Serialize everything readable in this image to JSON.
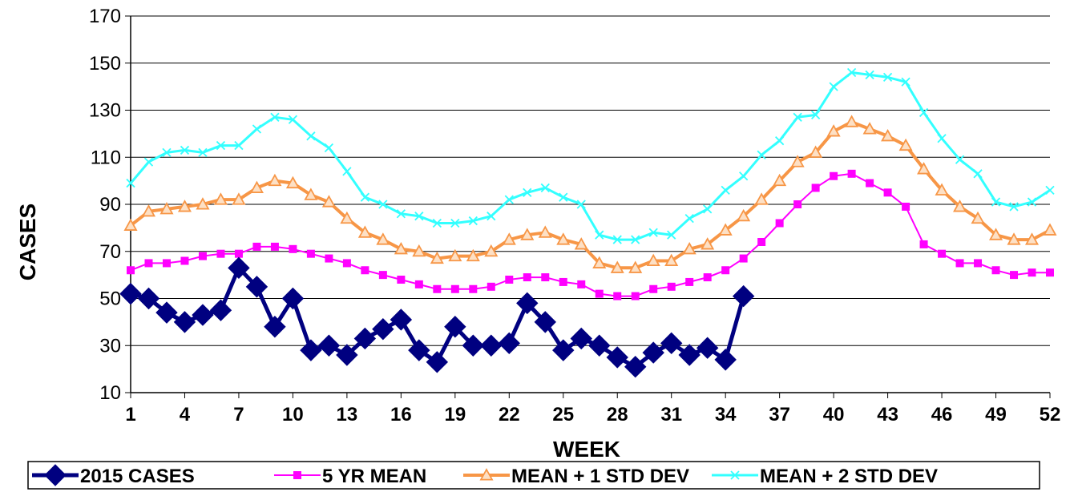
{
  "chart_data": {
    "type": "line",
    "xlabel": "WEEK",
    "ylabel": "CASES",
    "ylim": [
      10,
      170
    ],
    "yticks": [
      10,
      30,
      50,
      70,
      90,
      110,
      130,
      150,
      170
    ],
    "xlim": [
      1,
      52
    ],
    "xticks": [
      1,
      4,
      7,
      10,
      13,
      16,
      19,
      22,
      25,
      28,
      31,
      34,
      37,
      40,
      43,
      46,
      49,
      52
    ],
    "grid": "horizontal",
    "legend_position": "bottom",
    "series": [
      {
        "name": "2015 CASES",
        "color": "#000080",
        "marker": "diamond",
        "x": [
          1,
          2,
          3,
          4,
          5,
          6,
          7,
          8,
          9,
          10,
          11,
          12,
          13,
          14,
          15,
          16,
          17,
          18,
          19,
          20,
          21,
          22,
          23,
          24,
          25,
          26,
          27,
          28,
          29,
          30,
          31,
          32,
          33,
          34,
          35
        ],
        "values": [
          52,
          50,
          44,
          40,
          43,
          45,
          63,
          55,
          38,
          50,
          28,
          30,
          26,
          33,
          37,
          41,
          28,
          23,
          38,
          30,
          30,
          31,
          48,
          40,
          28,
          33,
          30,
          25,
          21,
          27,
          31,
          26,
          29,
          24,
          51
        ]
      },
      {
        "name": "5 YR MEAN",
        "color": "#ff00ff",
        "marker": "square",
        "x": [
          1,
          2,
          3,
          4,
          5,
          6,
          7,
          8,
          9,
          10,
          11,
          12,
          13,
          14,
          15,
          16,
          17,
          18,
          19,
          20,
          21,
          22,
          23,
          24,
          25,
          26,
          27,
          28,
          29,
          30,
          31,
          32,
          33,
          34,
          35,
          36,
          37,
          38,
          39,
          40,
          41,
          42,
          43,
          44,
          45,
          46,
          47,
          48,
          49,
          50,
          51,
          52
        ],
        "values": [
          62,
          65,
          65,
          66,
          68,
          69,
          69,
          72,
          72,
          71,
          69,
          67,
          65,
          62,
          60,
          58,
          56,
          54,
          54,
          54,
          55,
          58,
          59,
          59,
          57,
          56,
          52,
          51,
          51,
          54,
          55,
          57,
          59,
          62,
          67,
          74,
          82,
          90,
          97,
          102,
          103,
          99,
          95,
          89,
          73,
          69,
          65,
          65,
          62,
          60,
          61,
          61
        ]
      },
      {
        "name": "MEAN + 1 STD DEV",
        "color": "#f79646",
        "marker": "triangle",
        "x": [
          1,
          2,
          3,
          4,
          5,
          6,
          7,
          8,
          9,
          10,
          11,
          12,
          13,
          14,
          15,
          16,
          17,
          18,
          19,
          20,
          21,
          22,
          23,
          24,
          25,
          26,
          27,
          28,
          29,
          30,
          31,
          32,
          33,
          34,
          35,
          36,
          37,
          38,
          39,
          40,
          41,
          42,
          43,
          44,
          45,
          46,
          47,
          48,
          49,
          50,
          51,
          52
        ],
        "values": [
          81,
          87,
          88,
          89,
          90,
          92,
          92,
          97,
          100,
          99,
          94,
          91,
          84,
          78,
          75,
          71,
          70,
          67,
          68,
          68,
          70,
          75,
          77,
          78,
          75,
          73,
          65,
          63,
          63,
          66,
          66,
          71,
          73,
          79,
          85,
          92,
          100,
          108,
          112,
          121,
          125,
          122,
          119,
          115,
          105,
          96,
          89,
          84,
          77,
          75,
          75,
          79
        ]
      },
      {
        "name": "MEAN + 2 STD DEV",
        "color": "#33ffff",
        "marker": "x",
        "x": [
          1,
          2,
          3,
          4,
          5,
          6,
          7,
          8,
          9,
          10,
          11,
          12,
          13,
          14,
          15,
          16,
          17,
          18,
          19,
          20,
          21,
          22,
          23,
          24,
          25,
          26,
          27,
          28,
          29,
          30,
          31,
          32,
          33,
          34,
          35,
          36,
          37,
          38,
          39,
          40,
          41,
          42,
          43,
          44,
          45,
          46,
          47,
          48,
          49,
          50,
          51,
          52
        ],
        "values": [
          99,
          108,
          112,
          113,
          112,
          115,
          115,
          122,
          127,
          126,
          119,
          114,
          104,
          93,
          90,
          86,
          85,
          82,
          82,
          83,
          85,
          92,
          95,
          97,
          93,
          90,
          77,
          75,
          75,
          78,
          77,
          84,
          88,
          96,
          102,
          111,
          117,
          127,
          128,
          140,
          146,
          145,
          144,
          142,
          129,
          118,
          109,
          103,
          91,
          89,
          91,
          96
        ]
      }
    ]
  }
}
